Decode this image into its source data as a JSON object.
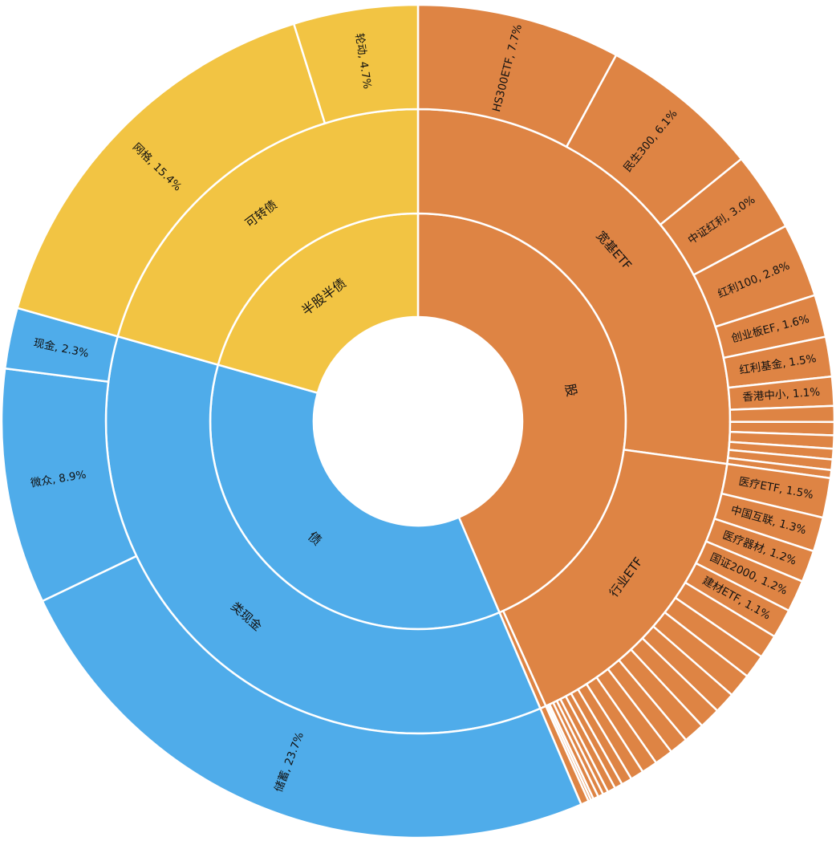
{
  "chart_data": {
    "type": "sunburst",
    "start_direction": "top",
    "direction": "clockwise",
    "colors": {
      "股": "#de8444",
      "债": "#4facea",
      "半股半债": "#f2c443"
    },
    "hierarchy": [
      {
        "name": "股",
        "children": [
          {
            "name": "宽基ETF",
            "children": [
              {
                "name": "HS300ETF",
                "value": 7.7,
                "label": "HS300ETF, 7.7%"
              },
              {
                "name": "民生300",
                "value": 6.1,
                "label": "民生300, 6.1%"
              },
              {
                "name": "中证红利",
                "value": 3.0,
                "label": "中证红利, 3.0%"
              },
              {
                "name": "红利100",
                "value": 2.8,
                "label": "红利100, 2.8%"
              },
              {
                "name": "创业板EF",
                "value": 1.6,
                "label": "创业板EF, 1.6%"
              },
              {
                "name": "红利基金",
                "value": 1.5,
                "label": "红利基金, 1.5%"
              },
              {
                "name": "香港中小",
                "value": 1.1,
                "label": "香港中小, 1.1%"
              },
              {
                "value": 0.6
              },
              {
                "value": 0.5
              },
              {
                "value": 0.5
              },
              {
                "value": 0.4
              },
              {
                "value": 0.4
              },
              {
                "value": 0.3
              }
            ]
          },
          {
            "name": "行业ETF",
            "children": [
              {
                "name": "医疗ETF",
                "value": 1.5,
                "label": "医疗ETF, 1.5%"
              },
              {
                "name": "中国互联",
                "value": 1.3,
                "label": "中国互联, 1.3%"
              },
              {
                "name": "医疗器材",
                "value": 1.2,
                "label": "医疗器材, 1.2%"
              },
              {
                "name": "国证2000",
                "value": 1.2,
                "label": "国证2000, 1.2%"
              },
              {
                "name": "建材ETF",
                "value": 1.1,
                "label": "建材ETF, 1.1%"
              },
              {
                "value": 0.9
              },
              {
                "value": 0.9
              },
              {
                "value": 0.9
              },
              {
                "value": 0.8
              },
              {
                "value": 0.8
              },
              {
                "value": 0.8
              },
              {
                "value": 0.7
              },
              {
                "value": 0.7
              },
              {
                "value": 0.6
              },
              {
                "value": 0.5
              },
              {
                "value": 0.4
              },
              {
                "value": 0.3
              },
              {
                "value": 0.3
              },
              {
                "value": 0.2
              },
              {
                "value": 0.2
              },
              {
                "value": 0.2
              },
              {
                "value": 0.1
              },
              {
                "value": 0.1
              }
            ]
          },
          {
            "name": "",
            "children": [
              {
                "value": 0.3
              }
            ]
          }
        ]
      },
      {
        "name": "债",
        "children": [
          {
            "name": "类现金",
            "children": [
              {
                "name": "储蓄",
                "value": 23.7,
                "label": "储蓄, 23.7%"
              },
              {
                "name": "微众",
                "value": 8.9,
                "label": "微众, 8.9%"
              },
              {
                "name": "现金",
                "value": 2.3,
                "label": "现金, 2.3%"
              }
            ]
          }
        ]
      },
      {
        "name": "半股半债",
        "children": [
          {
            "name": "可转债",
            "children": [
              {
                "name": "网格",
                "value": 15.4,
                "label": "网格, 15.4%"
              },
              {
                "name": "轮动",
                "value": 4.7,
                "label": "轮动, 4.7%"
              }
            ]
          }
        ]
      }
    ]
  }
}
